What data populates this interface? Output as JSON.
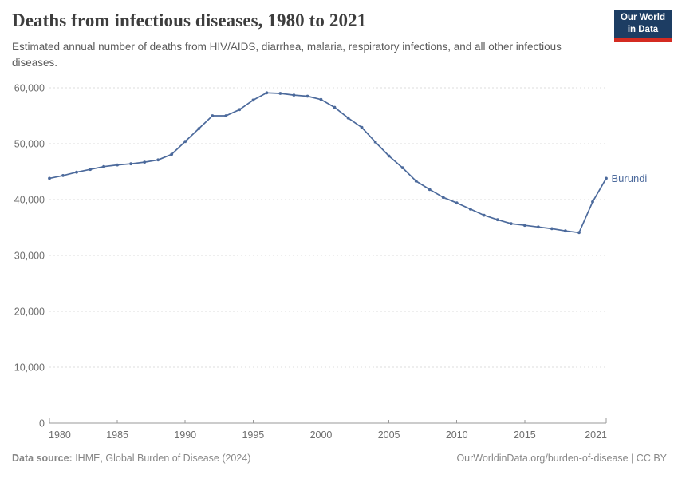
{
  "header": {
    "title": "Deaths from infectious diseases, 1980 to 2021",
    "subtitle": "Estimated annual number of deaths from HIV/AIDS, diarrhea, malaria, respiratory infections, and all other infectious diseases."
  },
  "logo": {
    "line1": "Our World",
    "line2": "in Data"
  },
  "chart_data": {
    "type": "line",
    "title": "Deaths from infectious diseases, 1980 to 2021",
    "xlabel": "",
    "ylabel": "",
    "xlim": [
      1980,
      2021
    ],
    "ylim": [
      0,
      60000
    ],
    "x_ticks": [
      1980,
      1985,
      1990,
      1995,
      2000,
      2005,
      2010,
      2015,
      2021
    ],
    "y_ticks": [
      0,
      10000,
      20000,
      30000,
      40000,
      50000,
      60000
    ],
    "grid": "horizontal-dashed",
    "legend": "end-of-line-label",
    "series": [
      {
        "name": "Burundi",
        "x": [
          1980,
          1981,
          1982,
          1983,
          1984,
          1985,
          1986,
          1987,
          1988,
          1989,
          1990,
          1991,
          1992,
          1993,
          1994,
          1995,
          1996,
          1997,
          1998,
          1999,
          2000,
          2001,
          2002,
          2003,
          2004,
          2005,
          2006,
          2007,
          2008,
          2009,
          2010,
          2011,
          2012,
          2013,
          2014,
          2015,
          2016,
          2017,
          2018,
          2019,
          2020,
          2021
        ],
        "values": [
          43800,
          44300,
          44900,
          45400,
          45900,
          46200,
          46400,
          46700,
          47100,
          48100,
          50400,
          52700,
          55000,
          55000,
          56100,
          57800,
          59100,
          59000,
          58700,
          58500,
          57900,
          56500,
          54600,
          52900,
          50300,
          47800,
          45700,
          43300,
          41800,
          40400,
          39400,
          38300,
          37200,
          36400,
          35700,
          35400,
          35100,
          34800,
          34400,
          34100,
          39600,
          43800
        ]
      }
    ]
  },
  "footer": {
    "datasource_label": "Data source:",
    "datasource_value": " IHME, Global Burden of Disease (2024)",
    "link": "OurWorldinData.org/burden-of-disease | CC BY"
  },
  "colors": {
    "line": "#4c6a9c",
    "entity_label": "#4c6a9c",
    "grid": "#dedede",
    "axis": "#999999",
    "tick_label": "#6e6e6e",
    "title": "#3d3d3d",
    "subtitle": "#5c5c5c",
    "footer": "#878787",
    "logo_bg": "#1d3d63",
    "logo_stripe": "#d42b21"
  }
}
